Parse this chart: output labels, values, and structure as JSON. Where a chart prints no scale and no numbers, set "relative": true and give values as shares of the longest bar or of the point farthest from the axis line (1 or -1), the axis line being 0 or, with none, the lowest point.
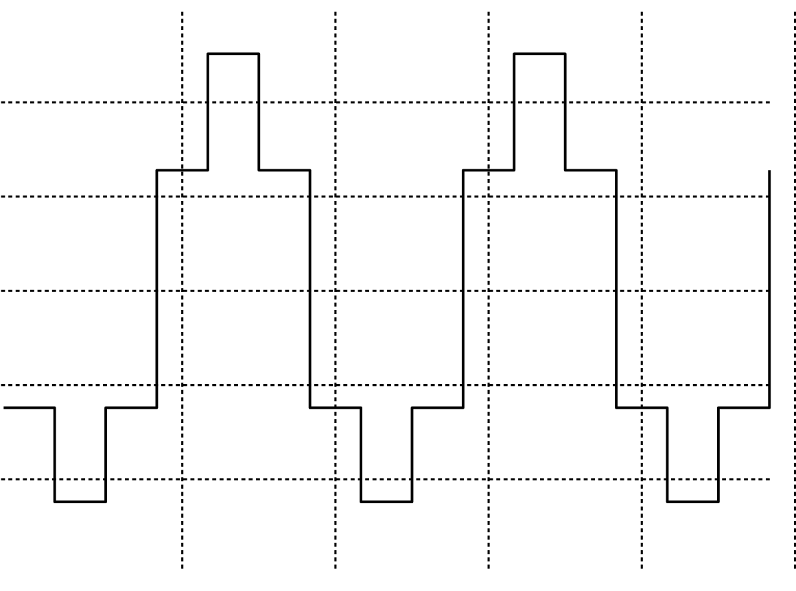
{
  "chart_data": {
    "type": "step",
    "relative": true,
    "grid": true,
    "tick_labels": false,
    "color": "#000000",
    "categories": [
      null,
      null,
      null,
      null,
      null,
      null,
      null,
      null,
      null,
      null,
      null,
      null,
      null,
      null,
      null,
      null
    ],
    "values": [
      0.21,
      0,
      0.21,
      0.74,
      1,
      0.74,
      0.21,
      0,
      0.21,
      0.74,
      1,
      0.74,
      0.21,
      0,
      0.21,
      0.74
    ]
  }
}
